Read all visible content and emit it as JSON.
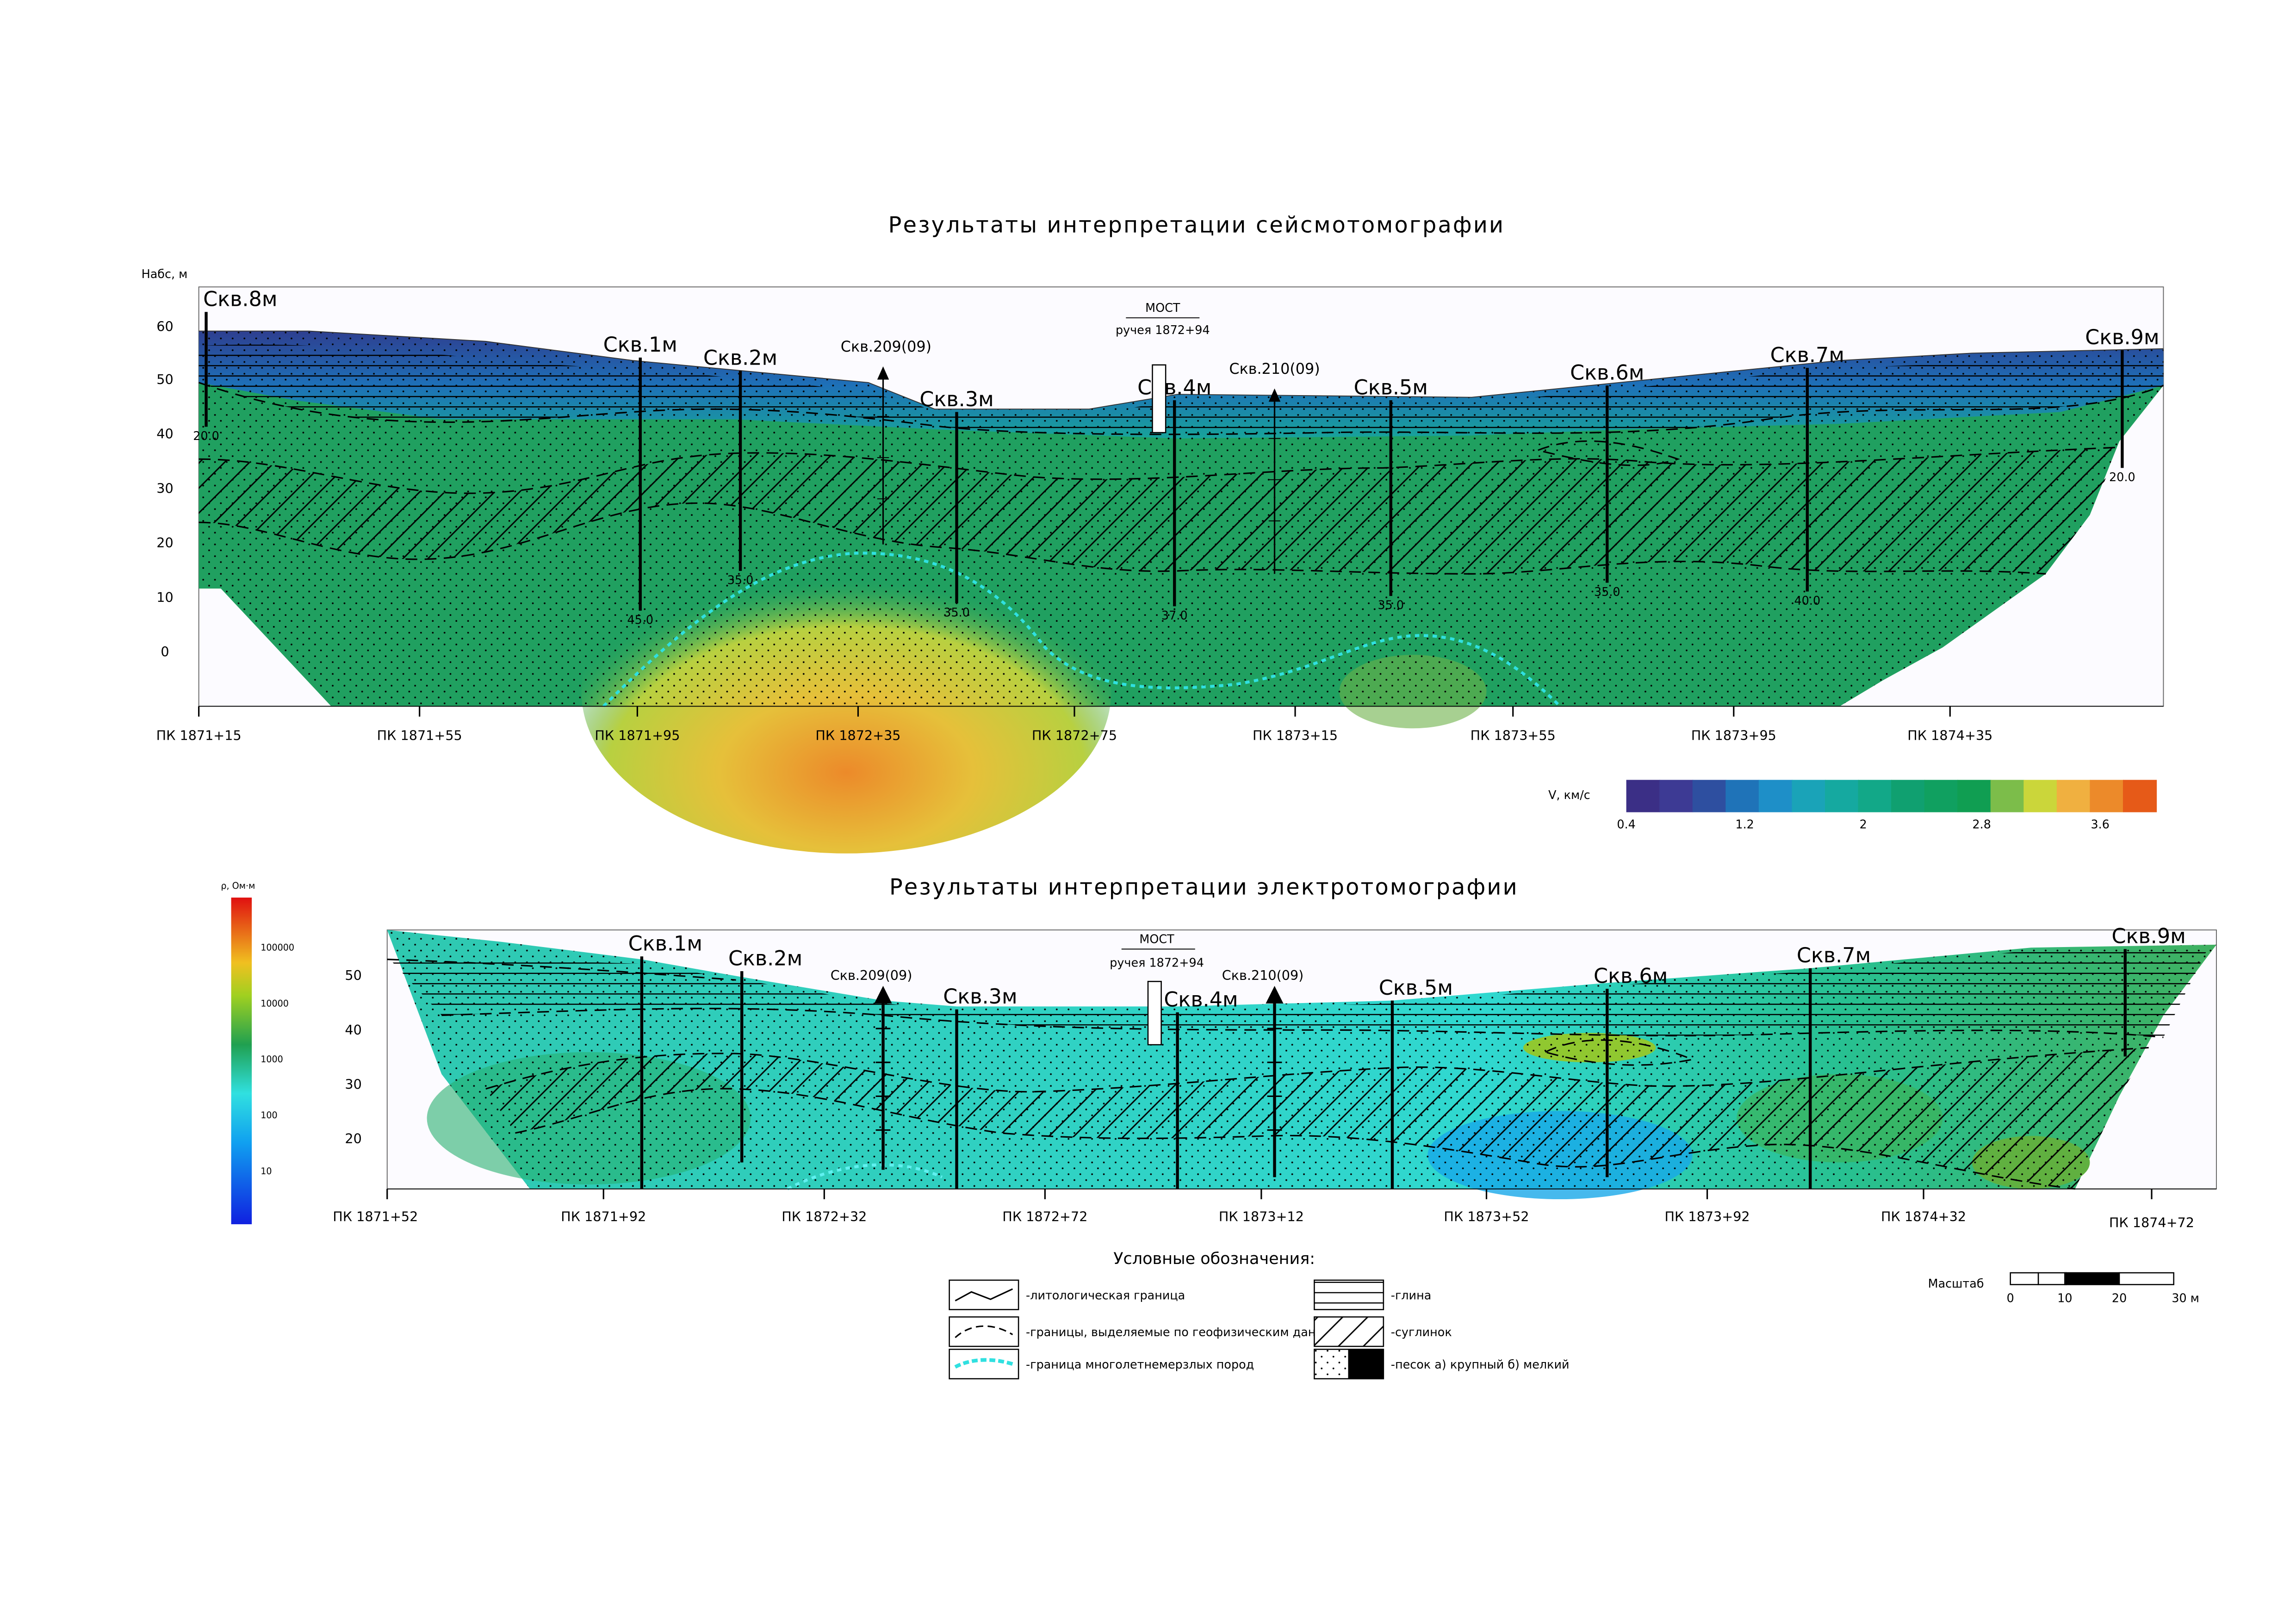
{
  "seismic": {
    "title": "Результаты интерпретации сейсмотомографии",
    "y_axis_label": "Набс, м",
    "yticks": [
      "60",
      "50",
      "40",
      "30",
      "20",
      "10",
      "0"
    ],
    "pickets": [
      "ПК 1871+15",
      "ПК 1871+55",
      "ПК 1871+95",
      "ПК 1872+35",
      "ПК 1872+75",
      "ПК 1873+15",
      "ПК 1873+55",
      "ПК 1873+95",
      "ПК 1874+35"
    ],
    "bridge": [
      "МОСТ",
      "ручея 1872+94"
    ],
    "wells": [
      {
        "label": "Скв.8м",
        "depth": "20.0"
      },
      {
        "label": "Скв.1м",
        "depth": "45.0"
      },
      {
        "label": "Скв.2м",
        "depth": "35.0"
      },
      {
        "label": "Скв.209(09)"
      },
      {
        "label": "Скв.3м",
        "depth": "35.0"
      },
      {
        "label": "Скв.4м",
        "depth": "37.0"
      },
      {
        "label": "Скв.210(09)"
      },
      {
        "label": "Скв.5м",
        "depth": "35.0"
      },
      {
        "label": "Скв.6м",
        "depth": "35.0"
      },
      {
        "label": "Скв.7м",
        "depth": "40.0"
      },
      {
        "label": "Скв.9м",
        "depth": "20.0"
      }
    ],
    "colorbar": {
      "label": "V, км/с",
      "ticks": [
        "0.4",
        "1.2",
        "2",
        "2.8",
        "3.6"
      ]
    }
  },
  "electric": {
    "title": "Результаты интерпретации электротомографии",
    "yticks": [
      "50",
      "40",
      "30",
      "20"
    ],
    "pickets": [
      "ПК 1871+52",
      "ПК 1871+92",
      "ПК 1872+32",
      "ПК 1872+72",
      "ПК 1873+12",
      "ПК 1873+52",
      "ПК 1873+92",
      "ПК 1874+32",
      "ПК 1874+72"
    ],
    "bridge": [
      "МОСТ",
      "ручея 1872+94"
    ],
    "wells": [
      "Скв.1м",
      "Скв.2м",
      "Скв.209(09)",
      "Скв.3м",
      "Скв.4м",
      "Скв.210(09)",
      "Скв.5м",
      "Скв.6м",
      "Скв.7м",
      "Скв.9м"
    ],
    "colorbar": {
      "label": "ρ, Ом·м",
      "ticks": [
        "100000",
        "10000",
        "1000",
        "100",
        "10"
      ]
    }
  },
  "legend": {
    "title": "Условные обозначения:",
    "items": [
      "-литологическая граница",
      "-границы, выделяемые по геофизическим данным",
      "-граница многолетнемерзлых пород",
      "-глина",
      "-суглинок",
      "-песок а) крупный б) мелкий"
    ]
  },
  "scale": {
    "label": "Масштаб",
    "ticks": [
      "0",
      "10",
      "20",
      "30 м"
    ]
  }
}
